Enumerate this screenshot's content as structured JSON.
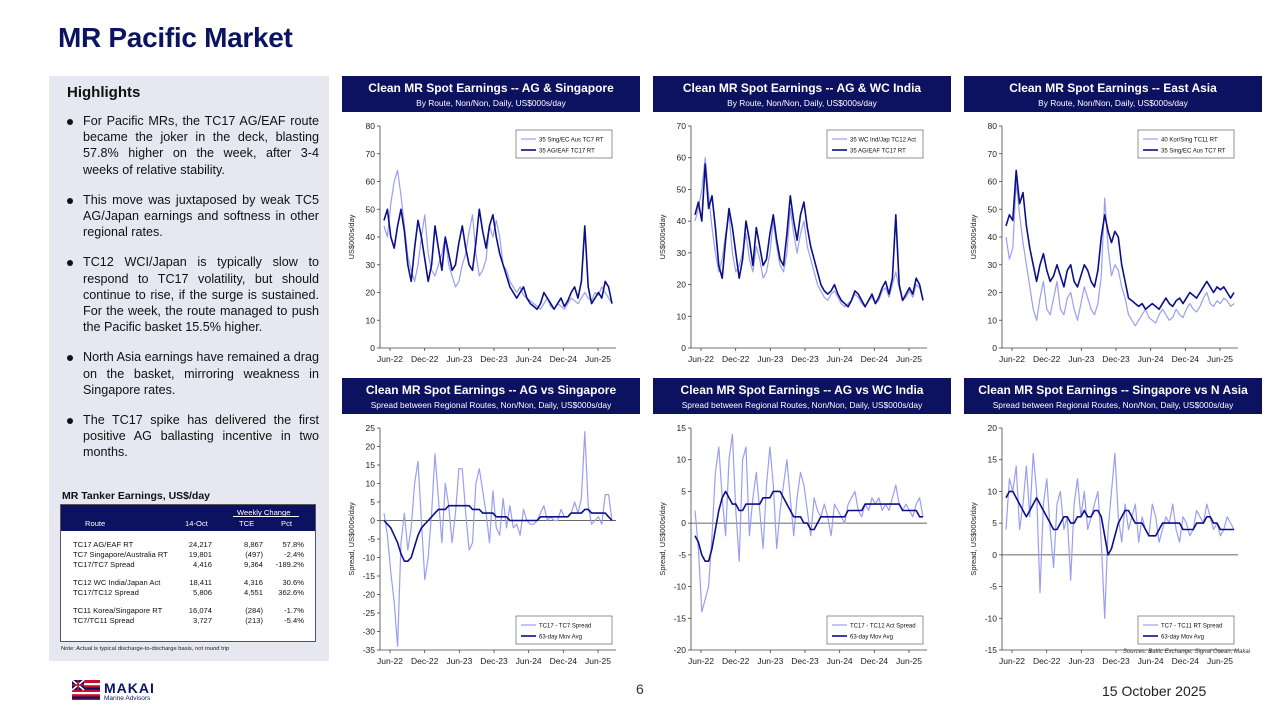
{
  "page": {
    "title": "MR Pacific Market",
    "page_number": "6",
    "date": "15 October 2025",
    "sources": "Sources: Baltic Exchange, Signal Ocean, Makai",
    "logo": {
      "name": "MAKAI",
      "tagline": "Marine Advisors"
    }
  },
  "colors": {
    "navy": "#0c1160",
    "panel_bg": "#e6e7f1",
    "series_dark": "#0b0f8a",
    "series_light": "#9a9ef0"
  },
  "highlights": {
    "title": "Highlights",
    "items": [
      "For Pacific MRs, the TC17 AG/EAF route became the joker in the deck, blasting 57.8% higher on the week, after 3-4 weeks of relative stability.",
      "This move was juxtaposed by weak TC5 AG/Japan earnings and softness in other regional rates.",
      "TC12 WCI/Japan is typically slow to respond to TC17 volatility, but should continue to rise, if the surge is sustained. For the week, the route managed to push the Pacific basket 15.5% higher.",
      "North Asia earnings have remained a drag on the basket, mirroring weakness in Singapore rates.",
      "The TC17 spike has delivered the first positive AG ballasting incentive in two months."
    ]
  },
  "earnings_table": {
    "title": "MR Tanker Earnings, US$/day",
    "group_header": "Weekly Change",
    "columns": [
      "Route",
      "14-Oct",
      "TCE",
      "Pct"
    ],
    "rows": [
      [
        "TC17 AG/EAF RT",
        "24,217",
        "8,867",
        "57.8%"
      ],
      [
        "TC7 Singapore/Australia RT",
        "19,801",
        "(497)",
        "-2.4%"
      ],
      [
        "TC17/TC7 Spread",
        "4,416",
        "9,364",
        "-189.2%"
      ],
      [
        "TC12 WC India/Japan Act",
        "18,411",
        "4,316",
        "30.6%"
      ],
      [
        "TC17/TC12 Spread",
        "5,806",
        "4,551",
        "362.6%"
      ],
      [
        "TC11 Korea/Singapore RT",
        "16,074",
        "(284)",
        "-1.7%"
      ],
      [
        "TC7/TC11 Spread",
        "3,727",
        "(213)",
        "-5.4%"
      ]
    ],
    "note": "Note: Actual is typical discharge-to-discharge basis, not round trip"
  },
  "chart_data": [
    {
      "type": "line",
      "title": "Clean MR Spot Earnings -- AG & Singapore",
      "subtitle": "By Route, Non/Non, Daily, US$000s/day",
      "ylabel": "US$000s/day",
      "ylim": [
        0,
        80
      ],
      "yticks": [
        0,
        10,
        20,
        30,
        40,
        50,
        60,
        70,
        80
      ],
      "xticks": [
        "Jun-22",
        "Dec-22",
        "Jun-23",
        "Dec-23",
        "Jun-24",
        "Dec-24",
        "Jun-25"
      ],
      "legend": "top-right",
      "series": [
        {
          "name": "35 Sing/EC Aus TC7 RT",
          "style": "light",
          "values": [
            44,
            40,
            52,
            60,
            64,
            55,
            44,
            33,
            28,
            24,
            30,
            40,
            48,
            34,
            28,
            26,
            30,
            34,
            40,
            30,
            26,
            22,
            24,
            30,
            34,
            42,
            48,
            34,
            26,
            28,
            32,
            44,
            40,
            46,
            40,
            30,
            28,
            24,
            22,
            20,
            22,
            19,
            18,
            17,
            16,
            15,
            14,
            16,
            18,
            15,
            14,
            16,
            15,
            14,
            16,
            18,
            17,
            16,
            18,
            20,
            18,
            17,
            20,
            19,
            22,
            20,
            18,
            16
          ]
        },
        {
          "name": "35 AG/EAF TC17 RT",
          "style": "dark",
          "values": [
            46,
            50,
            40,
            36,
            44,
            50,
            42,
            30,
            24,
            36,
            46,
            40,
            32,
            24,
            30,
            44,
            36,
            28,
            40,
            34,
            28,
            30,
            38,
            44,
            36,
            30,
            28,
            38,
            50,
            42,
            36,
            44,
            48,
            40,
            34,
            30,
            26,
            22,
            20,
            18,
            20,
            22,
            18,
            16,
            15,
            14,
            16,
            20,
            18,
            16,
            14,
            16,
            18,
            15,
            17,
            20,
            22,
            18,
            24,
            44,
            22,
            16,
            18,
            20,
            18,
            24,
            22,
            16
          ]
        }
      ]
    },
    {
      "type": "line",
      "title": "Clean MR Spot Earnings -- AG & WC India",
      "subtitle": "By Route, Non/Non, Daily, US$000s/day",
      "ylabel": "US$000s/day",
      "ylim": [
        0,
        70
      ],
      "yticks": [
        0,
        10,
        20,
        30,
        40,
        50,
        60,
        70
      ],
      "xticks": [
        "Jun-22",
        "Dec-22",
        "Jun-23",
        "Dec-23",
        "Jun-24",
        "Dec-24",
        "Jun-25"
      ],
      "legend": "top-right",
      "series": [
        {
          "name": "35 WC Ind/Jap TC12 Act",
          "style": "light",
          "values": [
            40,
            44,
            50,
            60,
            48,
            38,
            30,
            24,
            28,
            36,
            42,
            30,
            24,
            26,
            30,
            36,
            28,
            24,
            32,
            28,
            22,
            24,
            30,
            40,
            32,
            26,
            24,
            30,
            44,
            36,
            30,
            36,
            40,
            32,
            28,
            24,
            20,
            18,
            16,
            15,
            17,
            18,
            16,
            14,
            13,
            14,
            15,
            17,
            16,
            14,
            13,
            15,
            16,
            14,
            15,
            18,
            19,
            16,
            20,
            24,
            19,
            15,
            16,
            18,
            16,
            20,
            19,
            15
          ]
        },
        {
          "name": "35 AG/EAF TC17 RT",
          "style": "dark",
          "values": [
            42,
            46,
            40,
            58,
            44,
            48,
            38,
            26,
            22,
            34,
            44,
            38,
            30,
            22,
            28,
            40,
            34,
            26,
            38,
            32,
            26,
            28,
            36,
            42,
            34,
            28,
            26,
            36,
            48,
            40,
            34,
            42,
            46,
            38,
            32,
            28,
            24,
            20,
            18,
            17,
            18,
            20,
            17,
            15,
            14,
            13,
            15,
            18,
            17,
            15,
            13,
            15,
            17,
            14,
            16,
            19,
            21,
            17,
            22,
            42,
            20,
            15,
            17,
            19,
            17,
            22,
            20,
            15
          ]
        }
      ]
    },
    {
      "type": "line",
      "title": "Clean MR Spot Earnings -- East Asia",
      "subtitle": "By Route, Non/Non, Daily, US$000s/day",
      "ylabel": "US$000s/day",
      "ylim": [
        0,
        80
      ],
      "yticks": [
        0,
        10,
        20,
        30,
        40,
        50,
        60,
        70,
        80
      ],
      "xticks": [
        "Jun-22",
        "Dec-22",
        "Jun-23",
        "Dec-23",
        "Jun-24",
        "Dec-24",
        "Jun-25"
      ],
      "legend": "top-right",
      "series": [
        {
          "name": "40 Kor/Sing TC11 RT",
          "style": "light",
          "values": [
            40,
            32,
            36,
            60,
            48,
            38,
            30,
            22,
            14,
            10,
            18,
            24,
            14,
            12,
            18,
            24,
            14,
            12,
            18,
            20,
            14,
            10,
            16,
            22,
            18,
            14,
            12,
            16,
            26,
            54,
            36,
            26,
            30,
            28,
            22,
            18,
            12,
            10,
            8,
            10,
            12,
            14,
            11,
            10,
            9,
            12,
            14,
            12,
            10,
            11,
            14,
            12,
            11,
            14,
            16,
            14,
            13,
            15,
            18,
            20,
            16,
            15,
            17,
            16,
            18,
            17,
            15,
            16
          ]
        },
        {
          "name": "35 Sing/EC Aus TC7 RT",
          "style": "dark",
          "values": [
            44,
            48,
            46,
            64,
            52,
            56,
            44,
            36,
            30,
            24,
            30,
            34,
            28,
            24,
            26,
            30,
            26,
            22,
            28,
            30,
            24,
            22,
            26,
            30,
            28,
            24,
            22,
            28,
            40,
            48,
            42,
            38,
            42,
            40,
            30,
            24,
            18,
            17,
            16,
            15,
            16,
            14,
            15,
            16,
            15,
            14,
            16,
            18,
            16,
            15,
            17,
            18,
            16,
            18,
            20,
            19,
            18,
            20,
            22,
            24,
            22,
            20,
            22,
            21,
            22,
            20,
            18,
            20
          ]
        }
      ]
    },
    {
      "type": "line",
      "title": "Clean MR Spot Earnings -- AG vs Singapore",
      "subtitle": "Spread between Regional Routes, Non/Non, Daily, US$000s/day",
      "ylabel": "Spread, US$000s/day",
      "ylim": [
        -35,
        25
      ],
      "yticks": [
        -35,
        -30,
        -25,
        -20,
        -15,
        -10,
        -5,
        0,
        5,
        10,
        15,
        20,
        25
      ],
      "xticks": [
        "Jun-22",
        "Dec-22",
        "Jun-23",
        "Dec-23",
        "Jun-24",
        "Dec-24",
        "Jun-25"
      ],
      "legend": "bottom-right",
      "series": [
        {
          "name": "TC17 - TC7 Spread",
          "style": "light",
          "values": [
            2,
            -4,
            -14,
            -22,
            -34,
            -6,
            2,
            -8,
            -2,
            10,
            16,
            0,
            -16,
            -10,
            2,
            18,
            6,
            -6,
            10,
            4,
            -6,
            2,
            14,
            14,
            2,
            -8,
            -6,
            10,
            14,
            8,
            2,
            -6,
            8,
            -2,
            -4,
            6,
            -2,
            4,
            -2,
            -1,
            -4,
            3,
            0,
            -1,
            -1,
            0,
            2,
            4,
            0,
            1,
            0,
            0,
            3,
            1,
            1,
            2,
            5,
            2,
            6,
            24,
            4,
            -1,
            0,
            1,
            -1,
            7,
            7,
            0
          ]
        },
        {
          "name": "63-day Mov Avg",
          "style": "dark",
          "values": [
            0,
            -1,
            -2,
            -4,
            -6,
            -9,
            -11,
            -11,
            -10,
            -7,
            -4,
            -2,
            -1,
            0,
            1,
            2,
            3,
            3,
            3,
            4,
            4,
            4,
            4,
            4,
            4,
            4,
            3,
            3,
            3,
            2,
            2,
            2,
            2,
            1,
            1,
            1,
            1,
            0,
            0,
            0,
            0,
            0,
            0,
            0,
            0,
            0,
            1,
            1,
            1,
            1,
            1,
            1,
            1,
            1,
            1,
            2,
            2,
            2,
            2,
            3,
            3,
            2,
            2,
            2,
            2,
            2,
            1,
            0
          ]
        }
      ]
    },
    {
      "type": "line",
      "title": "Clean MR Spot Earnings -- AG vs WC India",
      "subtitle": "Spread between Regional Routes, Non/Non, Daily, US$000s/day",
      "ylabel": "Spread, US$000s/day",
      "ylim": [
        -20,
        15
      ],
      "yticks": [
        -20,
        -15,
        -10,
        -5,
        0,
        5,
        10,
        15
      ],
      "xticks": [
        "Jun-22",
        "Dec-22",
        "Jun-23",
        "Dec-23",
        "Jun-24",
        "Dec-24",
        "Jun-25"
      ],
      "legend": "bottom-right",
      "series": [
        {
          "name": "TC17 - TC12 Act Spread",
          "style": "light",
          "values": [
            2,
            -4,
            -14,
            -12,
            -10,
            -2,
            8,
            12,
            4,
            -2,
            10,
            14,
            2,
            -6,
            10,
            12,
            -2,
            4,
            8,
            2,
            -4,
            6,
            12,
            6,
            -4,
            2,
            6,
            10,
            4,
            -2,
            4,
            8,
            6,
            2,
            -2,
            4,
            2,
            1,
            3,
            1,
            -2,
            3,
            2,
            1,
            0,
            3,
            4,
            5,
            2,
            1,
            3,
            2,
            4,
            3,
            4,
            2,
            3,
            2,
            4,
            6,
            3,
            2,
            3,
            2,
            1,
            3,
            4,
            1
          ]
        },
        {
          "name": "63-day Mov Avg",
          "style": "dark",
          "values": [
            -2,
            -3,
            -5,
            -6,
            -6,
            -4,
            -1,
            2,
            4,
            5,
            4,
            3,
            3,
            2,
            2,
            3,
            3,
            3,
            3,
            3,
            4,
            4,
            4,
            5,
            5,
            5,
            4,
            3,
            2,
            1,
            1,
            1,
            0,
            0,
            -1,
            -1,
            0,
            1,
            1,
            1,
            1,
            1,
            1,
            1,
            1,
            2,
            2,
            2,
            2,
            2,
            3,
            3,
            3,
            3,
            3,
            3,
            3,
            3,
            3,
            3,
            3,
            2,
            2,
            2,
            2,
            2,
            1,
            1
          ]
        }
      ]
    },
    {
      "type": "line",
      "title": "Clean MR Spot Earnings -- Singapore vs N Asia",
      "subtitle": "Spread between Regional Routes, Non/Non, Daily, US$000s/day",
      "ylabel": "Spread, US$000s/day",
      "ylim": [
        -15,
        20
      ],
      "yticks": [
        -15,
        -10,
        -5,
        0,
        5,
        10,
        15,
        20
      ],
      "xticks": [
        "Jun-22",
        "Dec-22",
        "Jun-23",
        "Dec-23",
        "Jun-24",
        "Dec-24",
        "Jun-25"
      ],
      "legend": "bottom-right",
      "series": [
        {
          "name": "TC7 - TC11 RT Spread",
          "style": "light",
          "values": [
            4,
            12,
            10,
            14,
            4,
            8,
            14,
            6,
            16,
            10,
            -6,
            8,
            12,
            4,
            -2,
            8,
            10,
            4,
            6,
            -4,
            8,
            12,
            6,
            10,
            4,
            6,
            8,
            10,
            2,
            -10,
            4,
            10,
            16,
            6,
            2,
            8,
            4,
            6,
            8,
            2,
            6,
            4,
            3,
            8,
            6,
            2,
            4,
            6,
            5,
            8,
            4,
            2,
            6,
            5,
            3,
            4,
            7,
            6,
            5,
            8,
            6,
            4,
            5,
            3,
            4,
            6,
            5,
            4
          ]
        },
        {
          "name": "63-day Mov Avg",
          "style": "dark",
          "values": [
            9,
            10,
            10,
            9,
            8,
            7,
            6,
            7,
            8,
            9,
            8,
            7,
            6,
            5,
            4,
            4,
            5,
            6,
            6,
            5,
            5,
            6,
            6,
            7,
            6,
            6,
            7,
            7,
            6,
            3,
            0,
            1,
            3,
            5,
            6,
            7,
            7,
            6,
            5,
            5,
            5,
            4,
            3,
            3,
            3,
            4,
            5,
            5,
            5,
            5,
            5,
            5,
            4,
            4,
            4,
            4,
            5,
            5,
            5,
            6,
            6,
            5,
            5,
            4,
            4,
            4,
            4,
            4
          ]
        }
      ]
    }
  ]
}
